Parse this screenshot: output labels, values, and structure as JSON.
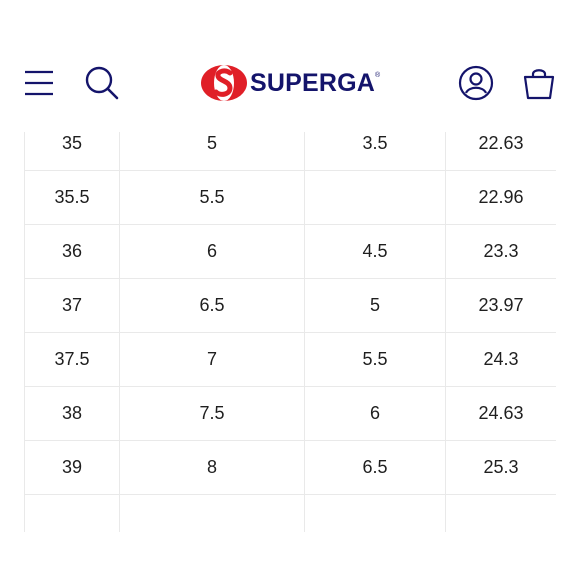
{
  "header": {
    "brand": "SUPERGA",
    "brand_mark": "®"
  },
  "icons": {
    "menu": "hamburger-icon",
    "search": "search-icon",
    "account": "user-icon",
    "cart": "shopping-bag-icon"
  },
  "colors": {
    "brand_red": "#e01f27",
    "brand_navy": "#14146b",
    "border": "#e9e9e9"
  },
  "size_table": {
    "rows": [
      [
        "35",
        "5",
        "3.5",
        "22.63"
      ],
      [
        "35.5",
        "5.5",
        "",
        "22.96"
      ],
      [
        "36",
        "6",
        "4.5",
        "23.3"
      ],
      [
        "37",
        "6.5",
        "5",
        "23.97"
      ],
      [
        "37.5",
        "7",
        "5.5",
        "24.3"
      ],
      [
        "38",
        "7.5",
        "6",
        "24.63"
      ],
      [
        "39",
        "8",
        "6.5",
        "25.3"
      ]
    ]
  }
}
